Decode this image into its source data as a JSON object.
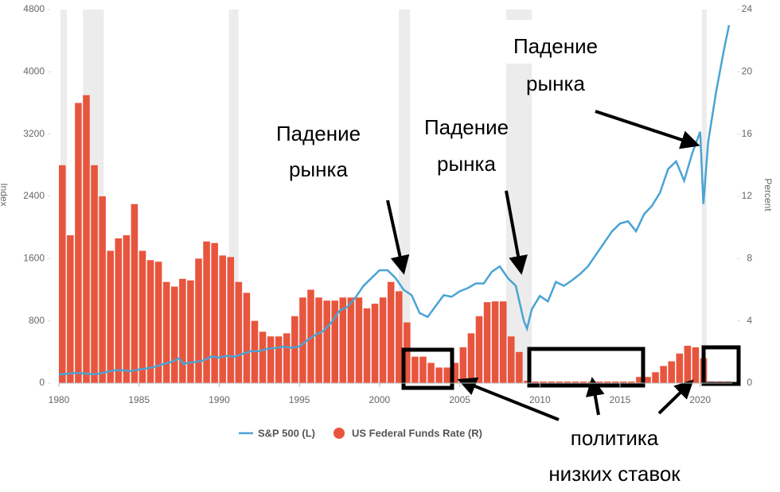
{
  "chart_data": {
    "type": "bar-line",
    "y_label": "Index",
    "y2_label": "Percent",
    "xlim": [
      1980,
      2022
    ],
    "xticks": [
      1980,
      1985,
      1990,
      1995,
      2000,
      2005,
      2010,
      2015,
      2020
    ],
    "ylim": [
      0,
      4800
    ],
    "yticks": [
      0,
      800,
      1600,
      2400,
      3200,
      4000,
      4800
    ],
    "y2lim": [
      0,
      24
    ],
    "y2ticks": [
      0,
      4,
      8,
      12,
      16,
      20,
      24
    ],
    "recessions": [
      [
        1980.1,
        1980.5
      ],
      [
        1981.5,
        1982.8
      ],
      [
        1990.6,
        1991.2
      ],
      [
        2001.2,
        2001.9
      ],
      [
        2007.9,
        2009.5
      ],
      [
        2020.1,
        2020.4
      ]
    ],
    "series": [
      {
        "name": "S&P 500 (L)",
        "kind": "line",
        "color": "#4aa3d4",
        "x": [
          1980,
          1980.5,
          1981,
          1981.5,
          1982,
          1982.5,
          1983,
          1983.5,
          1984,
          1984.5,
          1985,
          1985.5,
          1986,
          1986.5,
          1987,
          1987.5,
          1987.8,
          1988,
          1988.5,
          1989,
          1989.5,
          1990,
          1990.5,
          1991,
          1991.5,
          1992,
          1992.5,
          1993,
          1993.5,
          1994,
          1994.5,
          1995,
          1995.5,
          1996,
          1996.5,
          1997,
          1997.5,
          1998,
          1998.5,
          1999,
          1999.5,
          2000,
          2000.5,
          2001,
          2001.5,
          2002,
          2002.5,
          2003,
          2003.5,
          2004,
          2004.5,
          2005,
          2005.5,
          2006,
          2006.5,
          2007,
          2007.5,
          2008,
          2008.5,
          2009,
          2009.2,
          2009.5,
          2010,
          2010.5,
          2011,
          2011.5,
          2012,
          2012.5,
          2013,
          2013.5,
          2014,
          2014.5,
          2015,
          2015.5,
          2016,
          2016.5,
          2017,
          2017.5,
          2018,
          2018.5,
          2019,
          2019.5,
          2020,
          2020.2,
          2020.5,
          2021,
          2021.5,
          2021.8
        ],
        "values": [
          110,
          120,
          130,
          125,
          115,
          120,
          145,
          165,
          165,
          155,
          175,
          190,
          210,
          245,
          270,
          320,
          240,
          260,
          270,
          290,
          340,
          330,
          350,
          340,
          380,
          410,
          410,
          440,
          450,
          470,
          455,
          470,
          550,
          620,
          670,
          780,
          930,
          980,
          1100,
          1250,
          1350,
          1450,
          1450,
          1350,
          1200,
          1130,
          900,
          850,
          990,
          1130,
          1110,
          1180,
          1220,
          1280,
          1280,
          1430,
          1500,
          1350,
          1250,
          800,
          700,
          950,
          1120,
          1050,
          1300,
          1250,
          1320,
          1400,
          1500,
          1650,
          1800,
          1950,
          2050,
          2080,
          1950,
          2170,
          2280,
          2450,
          2750,
          2850,
          2600,
          2950,
          3230,
          2300,
          3100,
          3750,
          4300,
          4600
        ]
      },
      {
        "name": "US Federal Funds Rate (R)",
        "kind": "bar",
        "axis": "y2",
        "color": "#e8553e",
        "x": [
          1980,
          1980.5,
          1981,
          1981.5,
          1982,
          1982.5,
          1983,
          1983.5,
          1984,
          1984.5,
          1985,
          1985.5,
          1986,
          1986.5,
          1987,
          1987.5,
          1988,
          1988.5,
          1989,
          1989.5,
          1990,
          1990.5,
          1991,
          1991.5,
          1992,
          1992.5,
          1993,
          1993.5,
          1994,
          1994.5,
          1995,
          1995.5,
          1996,
          1996.5,
          1997,
          1997.5,
          1998,
          1998.5,
          1999,
          1999.5,
          2000,
          2000.5,
          2001,
          2001.5,
          2002,
          2002.5,
          2003,
          2003.5,
          2004,
          2004.5,
          2005,
          2005.5,
          2006,
          2006.5,
          2007,
          2007.5,
          2008,
          2008.5,
          2009,
          2009.5,
          2010,
          2010.5,
          2011,
          2011.5,
          2012,
          2012.5,
          2013,
          2013.5,
          2014,
          2014.5,
          2015,
          2015.5,
          2016,
          2016.5,
          2017,
          2017.5,
          2018,
          2018.5,
          2019,
          2019.5,
          2020,
          2020.5,
          2021,
          2021.5
        ],
        "values": [
          14,
          9.5,
          18,
          18.5,
          14,
          12,
          8.5,
          9.3,
          9.5,
          11.5,
          8.5,
          7.9,
          7.8,
          6.5,
          6.2,
          6.7,
          6.6,
          8,
          9.1,
          9,
          8.2,
          8.1,
          6.5,
          5.8,
          4,
          3.3,
          3,
          3,
          3.2,
          4.3,
          5.5,
          6,
          5.5,
          5.3,
          5.3,
          5.5,
          5.5,
          5.5,
          4.8,
          5.1,
          5.5,
          6.5,
          5.9,
          3.9,
          1.7,
          1.7,
          1.3,
          1,
          1,
          1.3,
          2.3,
          3.2,
          4.3,
          5.2,
          5.25,
          5.25,
          3,
          2,
          0.15,
          0.1,
          0.1,
          0.1,
          0.1,
          0.1,
          0.1,
          0.1,
          0.1,
          0.1,
          0.1,
          0.1,
          0.1,
          0.1,
          0.4,
          0.4,
          0.7,
          1.1,
          1.4,
          1.9,
          2.4,
          2.3,
          1.6,
          0.1,
          0.1,
          0.1
        ]
      }
    ],
    "annotations": {
      "crash": [
        "Падение",
        "рынка"
      ],
      "policy": [
        "политика",
        "низких ставок"
      ]
    }
  }
}
